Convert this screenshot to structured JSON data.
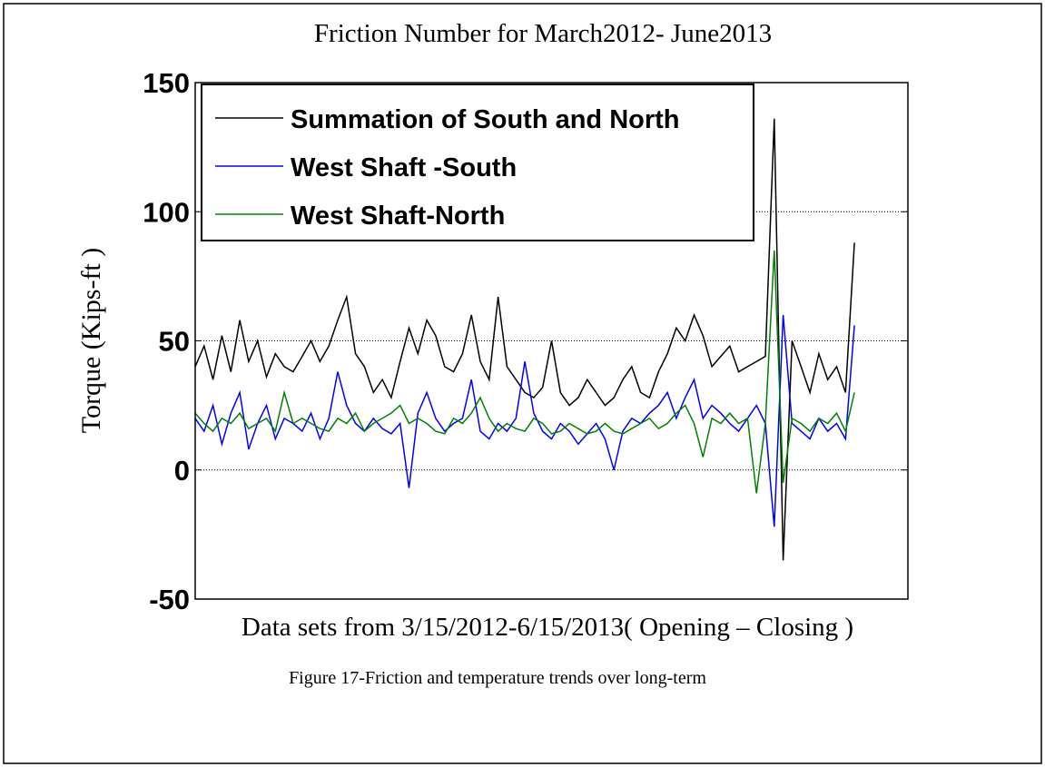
{
  "caption": "Figure 17-Friction and temperature trends over long-term",
  "chart_data": {
    "type": "line",
    "title": "Friction Number for  March2012- June2013",
    "xlabel": "Data sets  from 3/15/2012-6/15/2013( Opening – Closing )",
    "ylabel": "Torque (Kips-ft )",
    "ylim": [
      -50,
      150
    ],
    "yticks": [
      -50,
      0,
      50,
      100,
      150
    ],
    "grid": true,
    "legend": "upper left",
    "series": [
      {
        "name": "Summation of South and North",
        "color": "#000000",
        "values": [
          40,
          48,
          35,
          52,
          38,
          58,
          42,
          50,
          36,
          45,
          40,
          38,
          44,
          50,
          42,
          48,
          58,
          67,
          45,
          40,
          30,
          35,
          28,
          42,
          55,
          45,
          58,
          52,
          40,
          38,
          45,
          60,
          42,
          35,
          67,
          40,
          35,
          30,
          28,
          32,
          50,
          30,
          25,
          28,
          35,
          30,
          25,
          28,
          35,
          40,
          30,
          28,
          38,
          45,
          55,
          50,
          60,
          52,
          40,
          44,
          48,
          38,
          40,
          42,
          44,
          136,
          -35,
          50,
          40,
          30,
          45,
          35,
          40,
          30,
          88,
          null,
          null,
          null,
          null,
          null,
          null
        ]
      },
      {
        "name": "West Shaft -South",
        "color": "#0000ff",
        "values": [
          20,
          15,
          25,
          10,
          22,
          30,
          8,
          18,
          25,
          12,
          20,
          18,
          15,
          22,
          12,
          20,
          38,
          25,
          18,
          15,
          20,
          16,
          14,
          18,
          -7,
          22,
          30,
          20,
          15,
          18,
          20,
          35,
          15,
          12,
          18,
          15,
          20,
          42,
          22,
          15,
          12,
          18,
          15,
          10,
          14,
          18,
          12,
          0,
          15,
          20,
          18,
          22,
          25,
          30,
          20,
          28,
          35,
          20,
          25,
          22,
          18,
          15,
          20,
          25,
          18,
          -22,
          60,
          18,
          15,
          12,
          20,
          15,
          18,
          12,
          56,
          null,
          null,
          null,
          null,
          null,
          null
        ]
      },
      {
        "name": "West Shaft-North",
        "color": "#008000",
        "values": [
          22,
          18,
          15,
          20,
          18,
          22,
          16,
          18,
          20,
          15,
          30,
          18,
          20,
          18,
          16,
          15,
          20,
          18,
          22,
          15,
          18,
          20,
          22,
          25,
          18,
          20,
          18,
          15,
          14,
          20,
          18,
          22,
          28,
          20,
          15,
          18,
          16,
          15,
          20,
          18,
          14,
          15,
          18,
          16,
          14,
          15,
          18,
          15,
          14,
          16,
          18,
          20,
          16,
          18,
          22,
          25,
          18,
          5,
          20,
          18,
          22,
          18,
          20,
          -9,
          18,
          85,
          -5,
          20,
          18,
          15,
          20,
          18,
          22,
          15,
          30,
          null,
          null,
          null,
          null,
          null,
          null
        ]
      }
    ]
  }
}
